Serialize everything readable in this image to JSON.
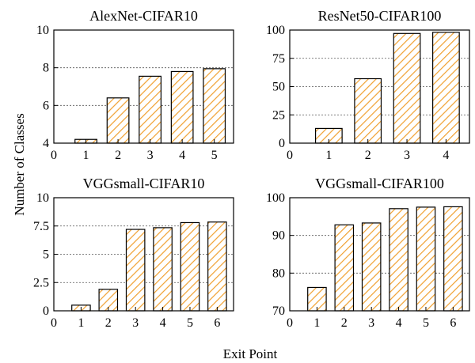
{
  "figure": {
    "ylabel": "Number of Classes",
    "xlabel": "Exit Point",
    "hatch_color": "#f0a030"
  },
  "chart_data": [
    {
      "type": "bar",
      "title": "AlexNet-CIFAR10",
      "categories": [
        "1",
        "2",
        "3",
        "4",
        "5"
      ],
      "values": [
        4.2,
        6.4,
        7.55,
        7.8,
        7.95
      ],
      "ylim": [
        4,
        10
      ],
      "yticks": [
        "4",
        "6",
        "8",
        "10"
      ],
      "x_origin_label": "0",
      "grid": true
    },
    {
      "type": "bar",
      "title": "ResNet50-CIFAR100",
      "categories": [
        "1",
        "2",
        "3",
        "4"
      ],
      "values": [
        13,
        57,
        97,
        98
      ],
      "ylim": [
        0,
        100
      ],
      "yticks": [
        "0",
        "25",
        "50",
        "75",
        "100"
      ],
      "x_origin_label": "0",
      "grid": true
    },
    {
      "type": "bar",
      "title": "VGGsmall-CIFAR10",
      "categories": [
        "1",
        "2",
        "3",
        "4",
        "5",
        "6"
      ],
      "values": [
        0.5,
        1.9,
        7.2,
        7.35,
        7.8,
        7.85
      ],
      "ylim": [
        0,
        10
      ],
      "yticks": [
        "0",
        "2.5",
        "5",
        "7.5",
        "10"
      ],
      "x_origin_label": "0",
      "grid": true
    },
    {
      "type": "bar",
      "title": "VGGsmall-CIFAR100",
      "categories": [
        "1",
        "2",
        "3",
        "4",
        "5",
        "6"
      ],
      "values": [
        76.2,
        92.8,
        93.3,
        97.1,
        97.5,
        97.6
      ],
      "ylim": [
        70,
        100
      ],
      "yticks": [
        "70",
        "80",
        "90",
        "100"
      ],
      "x_origin_label": "0",
      "grid": true
    }
  ]
}
